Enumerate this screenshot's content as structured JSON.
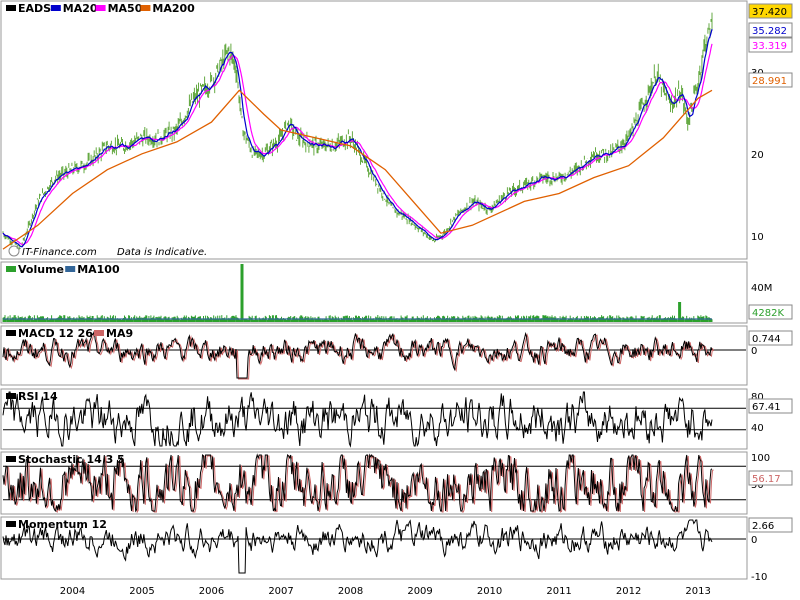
{
  "chart_data": [
    {
      "type": "line",
      "panel": "price",
      "symbol": "EADS",
      "legend": [
        {
          "name": "EADS",
          "color": "#000000"
        },
        {
          "name": "MA20",
          "color": "#0000cc"
        },
        {
          "name": "MA50",
          "color": "#ff00ff"
        },
        {
          "name": "MA200",
          "color": "#e06000"
        }
      ],
      "yaxis_ticks": [
        "10",
        "20",
        "30"
      ],
      "ylim": [
        8,
        40
      ],
      "badges": [
        {
          "label": "37.420",
          "value": 37.42,
          "series": "EADS",
          "bg": "#ffd700",
          "fg": "#000000"
        },
        {
          "label": "35.282",
          "value": 35.282,
          "series": "MA20",
          "bg": "#ffffff",
          "fg": "#0000cc"
        },
        {
          "label": "33.319",
          "value": 33.319,
          "series": "MA50",
          "bg": "#ffffff",
          "fg": "#ff00ff"
        },
        {
          "label": "28.991",
          "value": 28.991,
          "series": "MA200",
          "bg": "#ffffff",
          "fg": "#e06000"
        }
      ],
      "price_path": [
        [
          2003.0,
          11
        ],
        [
          2003.25,
          9
        ],
        [
          2003.5,
          15
        ],
        [
          2003.75,
          18
        ],
        [
          2004.0,
          19
        ],
        [
          2004.25,
          20
        ],
        [
          2004.5,
          22
        ],
        [
          2004.75,
          22
        ],
        [
          2005.0,
          23
        ],
        [
          2005.25,
          23
        ],
        [
          2005.5,
          24
        ],
        [
          2005.75,
          28
        ],
        [
          2006.0,
          30
        ],
        [
          2006.25,
          34
        ],
        [
          2006.35,
          32
        ],
        [
          2006.45,
          24
        ],
        [
          2006.6,
          21
        ],
        [
          2006.75,
          21
        ],
        [
          2007.0,
          23
        ],
        [
          2007.1,
          25
        ],
        [
          2007.25,
          23
        ],
        [
          2007.5,
          22
        ],
        [
          2007.75,
          22
        ],
        [
          2008.0,
          23
        ],
        [
          2008.2,
          20
        ],
        [
          2008.4,
          17
        ],
        [
          2008.6,
          14
        ],
        [
          2008.8,
          13
        ],
        [
          2009.0,
          11.5
        ],
        [
          2009.2,
          10
        ],
        [
          2009.35,
          11
        ],
        [
          2009.5,
          13
        ],
        [
          2009.75,
          15
        ],
        [
          2010.0,
          14
        ],
        [
          2010.25,
          16
        ],
        [
          2010.5,
          17
        ],
        [
          2010.75,
          18
        ],
        [
          2011.0,
          18
        ],
        [
          2011.25,
          19
        ],
        [
          2011.5,
          21
        ],
        [
          2011.75,
          21
        ],
        [
          2012.0,
          23
        ],
        [
          2012.25,
          28
        ],
        [
          2012.4,
          31
        ],
        [
          2012.6,
          27
        ],
        [
          2012.75,
          29
        ],
        [
          2012.85,
          25
        ],
        [
          2013.0,
          30
        ],
        [
          2013.1,
          35
        ],
        [
          2013.2,
          37.4
        ]
      ],
      "ma200_path": [
        [
          2003.0,
          9
        ],
        [
          2003.5,
          12
        ],
        [
          2004.0,
          16
        ],
        [
          2004.5,
          19
        ],
        [
          2005.0,
          21
        ],
        [
          2005.5,
          22.5
        ],
        [
          2006.0,
          25
        ],
        [
          2006.4,
          29
        ],
        [
          2006.75,
          26
        ],
        [
          2007.0,
          24
        ],
        [
          2007.5,
          23
        ],
        [
          2008.0,
          22
        ],
        [
          2008.5,
          19
        ],
        [
          2009.0,
          14
        ],
        [
          2009.3,
          11
        ],
        [
          2009.75,
          12
        ],
        [
          2010.0,
          13
        ],
        [
          2010.5,
          15
        ],
        [
          2011.0,
          16
        ],
        [
          2011.5,
          18
        ],
        [
          2012.0,
          19.5
        ],
        [
          2012.5,
          23
        ],
        [
          2012.75,
          25.5
        ],
        [
          2013.0,
          28
        ],
        [
          2013.2,
          29
        ]
      ]
    },
    {
      "type": "bar",
      "panel": "volume",
      "legend": [
        {
          "name": "Volume",
          "color": "#2ca02c"
        },
        {
          "name": "MA100",
          "color": "#336699"
        }
      ],
      "yaxis_ticks": [
        "40M"
      ],
      "badges": [
        {
          "label": "4282K",
          "value": 4282000,
          "bg": "#ffffff",
          "fg": "#2ca02c"
        }
      ]
    },
    {
      "type": "line",
      "panel": "macd",
      "legend": [
        {
          "name": "MACD 12 26",
          "color": "#000000"
        },
        {
          "name": "MA9",
          "color": "#cc6666"
        }
      ],
      "yaxis_ticks": [
        "0"
      ],
      "ylim": [
        -3,
        2
      ],
      "badges": [
        {
          "label": "0.744",
          "value": 0.744,
          "bg": "#ffffff",
          "fg": "#000000"
        }
      ]
    },
    {
      "type": "line",
      "panel": "rsi",
      "legend": [
        {
          "name": "RSI 14",
          "color": "#000000"
        }
      ],
      "yaxis_ticks": [
        "80",
        "40"
      ],
      "ylim": [
        0,
        100
      ],
      "reference_lines": [
        70,
        30
      ],
      "badges": [
        {
          "label": "67.41",
          "value": 67.41,
          "bg": "#ffffff",
          "fg": "#000000"
        }
      ]
    },
    {
      "type": "line",
      "panel": "stochastic",
      "legend": [
        {
          "name": "Stochastic 14 3 5",
          "color": "#000000"
        }
      ],
      "yaxis_ticks": [
        "100",
        "50"
      ],
      "ylim": [
        0,
        100
      ],
      "reference_lines": [
        80,
        20
      ],
      "badges": [
        {
          "label": "56.17",
          "value": 56.17,
          "bg": "#ffffff",
          "fg": "#cc6666"
        }
      ]
    },
    {
      "type": "line",
      "panel": "momentum",
      "legend": [
        {
          "name": "Momentum 12",
          "color": "#000000"
        }
      ],
      "yaxis_ticks": [
        "0",
        "-10"
      ],
      "ylim": [
        -10,
        4
      ],
      "badges": [
        {
          "label": "2.66",
          "value": 2.66,
          "bg": "#ffffff",
          "fg": "#000000"
        }
      ]
    }
  ],
  "x_axis": {
    "labels": [
      "2004",
      "2005",
      "2006",
      "2007",
      "2008",
      "2009",
      "2010",
      "2011",
      "2012",
      "2013"
    ],
    "xlim": [
      2003.0,
      2013.2
    ]
  },
  "watermark": {
    "brand": "IT-Finance.com",
    "note": "Data is Indicative."
  }
}
